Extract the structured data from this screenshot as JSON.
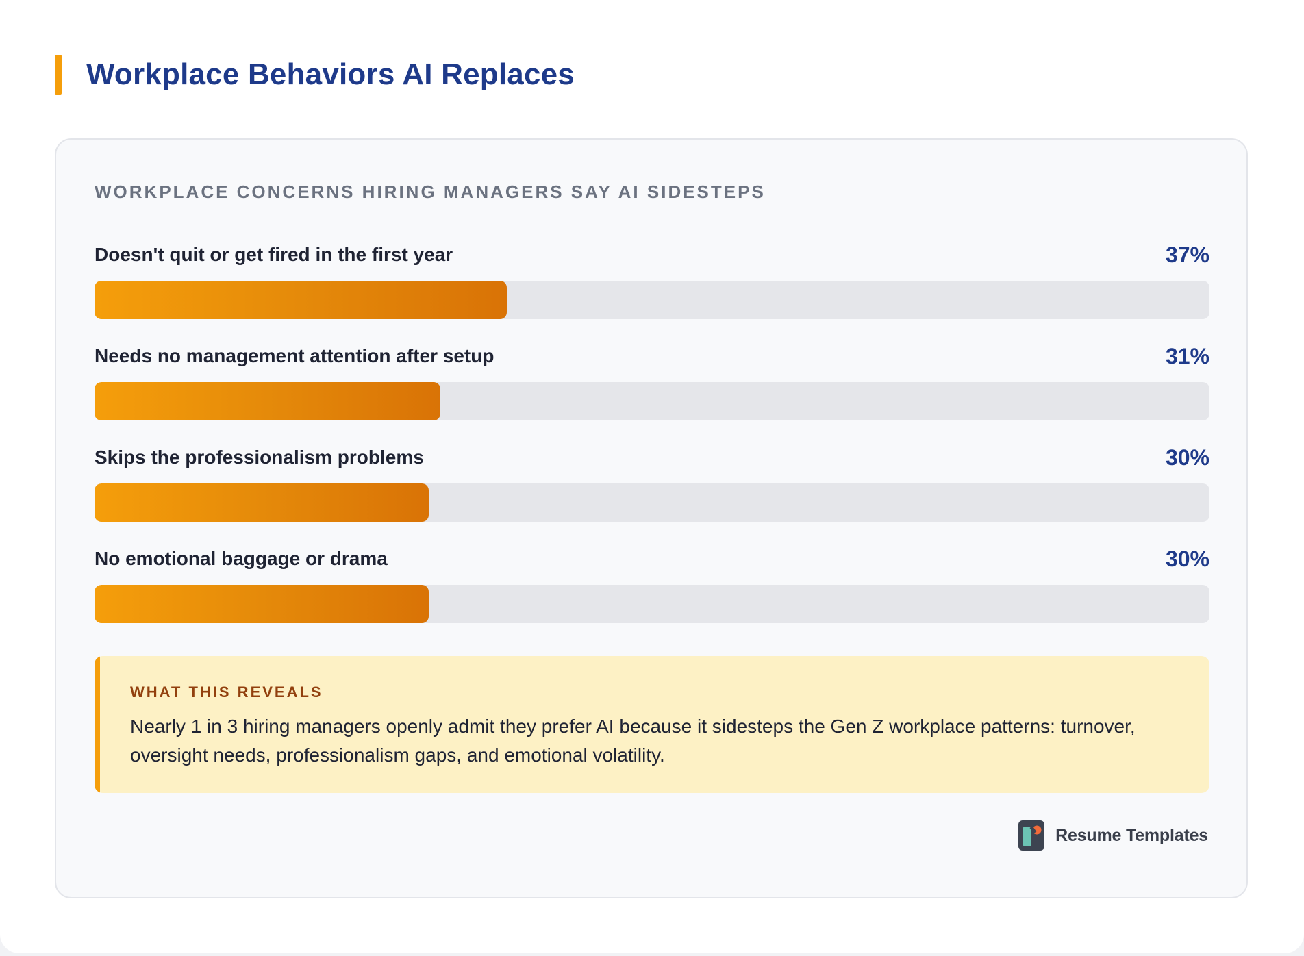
{
  "header": {
    "title": "Workplace Behaviors AI Replaces"
  },
  "colors": {
    "accent": "#f59e0b",
    "title": "#1e3a8a",
    "bar_start": "#f59e0b",
    "bar_end": "#d97306",
    "track": "#e5e6ea",
    "callout_bg": "#fdf1c5"
  },
  "chart_data": {
    "type": "bar",
    "orientation": "horizontal",
    "title": "WORKPLACE CONCERNS HIRING MANAGERS SAY AI SIDESTEPS",
    "categories": [
      "Doesn't quit or get fired in the first year",
      "Needs no management attention after setup",
      "Skips the professionalism problems",
      "No emotional baggage or drama"
    ],
    "values": [
      37,
      31,
      30,
      30
    ],
    "value_labels": [
      "37%",
      "31%",
      "30%",
      "30%"
    ],
    "unit": "%",
    "xlim": [
      0,
      100
    ],
    "grid": false
  },
  "callout": {
    "heading": "WHAT THIS REVEALS",
    "text": "Nearly 1 in 3 hiring managers openly admit they prefer AI because it sidesteps the Gen Z workplace patterns: turnover, oversight needs, professionalism gaps, and emotional volatility."
  },
  "brand": {
    "name": "Resume Templates",
    "logo_icon": "resume-templates-logo-icon"
  }
}
